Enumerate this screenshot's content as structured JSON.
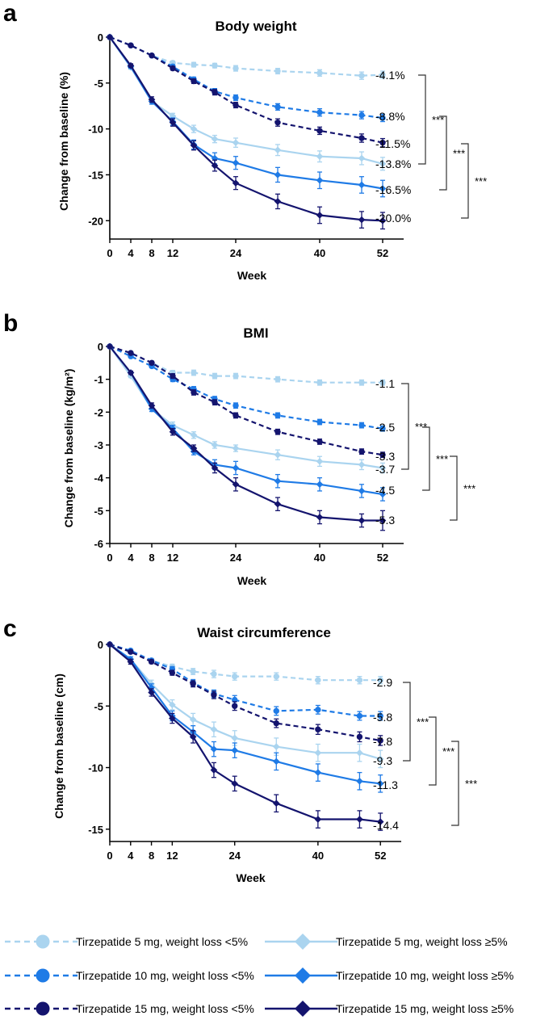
{
  "colors": {
    "t5": "#aad4ef",
    "t10": "#1f7be6",
    "t15": "#14146e"
  },
  "legend": {
    "items": [
      {
        "label": "Tirzepatide 5 mg, weight loss <5%",
        "color": "t5",
        "dashed": true,
        "marker": "circle"
      },
      {
        "label": "Tirzepatide 10 mg, weight loss <5%",
        "color": "t10",
        "dashed": true,
        "marker": "circle"
      },
      {
        "label": "Tirzepatide 15 mg, weight loss <5%",
        "color": "t15",
        "dashed": true,
        "marker": "circle"
      },
      {
        "label": "Tirzepatide 5 mg, weight loss ≥5%",
        "color": "t5",
        "dashed": false,
        "marker": "diamond"
      },
      {
        "label": "Tirzepatide 10 mg, weight loss ≥5%",
        "color": "t10",
        "dashed": false,
        "marker": "diamond"
      },
      {
        "label": "Tirzepatide 15 mg, weight loss ≥5%",
        "color": "t15",
        "dashed": false,
        "marker": "diamond"
      }
    ]
  },
  "chart_data": [
    {
      "type": "line",
      "panel": "a",
      "title": "Body weight",
      "xlabel": "Week",
      "ylabel": "Change from baseline (%)",
      "xticks": [
        0,
        4,
        8,
        12,
        24,
        40,
        52
      ],
      "yticks": [
        0,
        -5,
        -10,
        -15,
        -20
      ],
      "ytick_labels": [
        "0",
        "-5",
        "-10",
        "-15",
        "-20"
      ],
      "xlim": [
        0,
        56
      ],
      "ylim": [
        -22,
        0
      ],
      "series": [
        {
          "name": "Tirzepatide 5 mg, weight loss <5%",
          "color": "t5",
          "dashed": true,
          "marker": "circle",
          "x": [
            0,
            4,
            8,
            12,
            16,
            20,
            24,
            32,
            40,
            48,
            52
          ],
          "y": [
            0,
            -0.9,
            -2.0,
            -2.8,
            -3.0,
            -3.1,
            -3.4,
            -3.7,
            -3.9,
            -4.2,
            -4.1
          ],
          "err": [
            0,
            0.1,
            0.15,
            0.2,
            0.25,
            0.25,
            0.3,
            0.3,
            0.35,
            0.4,
            0.4
          ],
          "end_label": "-4.1%"
        },
        {
          "name": "Tirzepatide 10 mg, weight loss <5%",
          "color": "t10",
          "dashed": true,
          "marker": "circle",
          "x": [
            0,
            4,
            8,
            12,
            16,
            20,
            24,
            32,
            40,
            48,
            52
          ],
          "y": [
            0,
            -0.9,
            -2.0,
            -3.2,
            -4.6,
            -5.9,
            -6.6,
            -7.6,
            -8.2,
            -8.5,
            -8.8
          ],
          "err": [
            0,
            0.1,
            0.15,
            0.2,
            0.25,
            0.3,
            0.3,
            0.35,
            0.4,
            0.4,
            0.4
          ],
          "end_label": "-8.8%"
        },
        {
          "name": "Tirzepatide 15 mg, weight loss <5%",
          "color": "t15",
          "dashed": true,
          "marker": "circle",
          "x": [
            0,
            4,
            8,
            12,
            16,
            20,
            24,
            32,
            40,
            48,
            52
          ],
          "y": [
            0,
            -0.9,
            -2.0,
            -3.4,
            -4.8,
            -6.0,
            -7.4,
            -9.3,
            -10.2,
            -11.0,
            -11.5
          ],
          "err": [
            0,
            0.1,
            0.15,
            0.2,
            0.25,
            0.3,
            0.3,
            0.4,
            0.4,
            0.45,
            0.45
          ],
          "end_label": "-11.5%"
        },
        {
          "name": "Tirzepatide 5 mg, weight loss ≥5%",
          "color": "t5",
          "dashed": false,
          "marker": "diamond",
          "x": [
            0,
            4,
            8,
            12,
            16,
            20,
            24,
            32,
            40,
            48,
            52
          ],
          "y": [
            0,
            -3.3,
            -7.0,
            -8.6,
            -10.0,
            -11.1,
            -11.5,
            -12.3,
            -13.0,
            -13.2,
            -13.8
          ],
          "err": [
            0,
            0.2,
            0.3,
            0.3,
            0.4,
            0.4,
            0.5,
            0.6,
            0.6,
            0.7,
            0.7
          ],
          "end_label": "-13.8%"
        },
        {
          "name": "Tirzepatide 10 mg, weight loss ≥5%",
          "color": "t10",
          "dashed": false,
          "marker": "diamond",
          "x": [
            0,
            4,
            8,
            12,
            16,
            20,
            24,
            32,
            40,
            48,
            52
          ],
          "y": [
            0,
            -3.2,
            -7.0,
            -9.2,
            -11.7,
            -13.2,
            -13.7,
            -15.0,
            -15.6,
            -16.1,
            -16.5
          ],
          "err": [
            0,
            0.2,
            0.3,
            0.4,
            0.5,
            0.6,
            0.7,
            0.8,
            0.9,
            0.9,
            0.9
          ],
          "end_label": "-16.5%"
        },
        {
          "name": "Tirzepatide 15 mg, weight loss ≥5%",
          "color": "t15",
          "dashed": false,
          "marker": "diamond",
          "x": [
            0,
            4,
            8,
            12,
            16,
            20,
            24,
            32,
            40,
            48,
            52
          ],
          "y": [
            0,
            -3.1,
            -6.8,
            -9.3,
            -11.8,
            -14.0,
            -15.9,
            -17.9,
            -19.4,
            -19.9,
            -20.0
          ],
          "err": [
            0,
            0.2,
            0.3,
            0.4,
            0.5,
            0.6,
            0.7,
            0.8,
            0.9,
            0.9,
            0.9
          ],
          "end_label": "-20.0%"
        }
      ],
      "comparisons": [
        {
          "from": 0,
          "to": 3,
          "label": "***",
          "level": 3
        },
        {
          "from": 1,
          "to": 4,
          "label": "***",
          "level": 2
        },
        {
          "from": 2,
          "to": 5,
          "label": "***",
          "level": 1
        }
      ]
    },
    {
      "type": "line",
      "panel": "b",
      "title": "BMI",
      "xlabel": "Week",
      "ylabel": "Change from baseline (kg/m²)",
      "xticks": [
        0,
        4,
        8,
        12,
        24,
        40,
        52
      ],
      "yticks": [
        0,
        -1,
        -2,
        -3,
        -4,
        -5,
        -6
      ],
      "ytick_labels": [
        "0",
        "-1",
        "-2",
        "-3",
        "-4",
        "-5",
        "-6"
      ],
      "xlim": [
        0,
        56
      ],
      "ylim": [
        -6,
        0
      ],
      "series": [
        {
          "name": "Tirzepatide 5 mg, weight loss <5%",
          "color": "t5",
          "dashed": true,
          "marker": "circle",
          "x": [
            0,
            4,
            8,
            12,
            16,
            20,
            24,
            32,
            40,
            48,
            52
          ],
          "y": [
            0,
            -0.2,
            -0.5,
            -0.8,
            -0.8,
            -0.9,
            -0.9,
            -1.0,
            -1.1,
            -1.1,
            -1.1
          ],
          "err": [
            0,
            0.03,
            0.05,
            0.07,
            0.08,
            0.08,
            0.08,
            0.08,
            0.08,
            0.08,
            0.08
          ],
          "end_label": "-1.1"
        },
        {
          "name": "Tirzepatide 10 mg, weight loss <5%",
          "color": "t10",
          "dashed": true,
          "marker": "circle",
          "x": [
            0,
            4,
            8,
            12,
            16,
            20,
            24,
            32,
            40,
            48,
            52
          ],
          "y": [
            0,
            -0.3,
            -0.6,
            -1.0,
            -1.3,
            -1.6,
            -1.8,
            -2.1,
            -2.3,
            -2.4,
            -2.5
          ],
          "err": [
            0,
            0.03,
            0.05,
            0.07,
            0.08,
            0.08,
            0.08,
            0.08,
            0.08,
            0.08,
            0.08
          ],
          "end_label": "-2.5"
        },
        {
          "name": "Tirzepatide 15 mg, weight loss <5%",
          "color": "t15",
          "dashed": true,
          "marker": "circle",
          "x": [
            0,
            4,
            8,
            12,
            16,
            20,
            24,
            32,
            40,
            48,
            52
          ],
          "y": [
            0,
            -0.2,
            -0.5,
            -0.9,
            -1.4,
            -1.7,
            -2.1,
            -2.6,
            -2.9,
            -3.2,
            -3.3
          ],
          "err": [
            0,
            0.03,
            0.05,
            0.07,
            0.08,
            0.08,
            0.08,
            0.08,
            0.08,
            0.08,
            0.08
          ],
          "end_label": "-3.3"
        },
        {
          "name": "Tirzepatide 5 mg, weight loss ≥5%",
          "color": "t5",
          "dashed": false,
          "marker": "diamond",
          "x": [
            0,
            4,
            8,
            12,
            16,
            20,
            24,
            32,
            40,
            48,
            52
          ],
          "y": [
            0,
            -0.9,
            -1.9,
            -2.4,
            -2.7,
            -3.0,
            -3.1,
            -3.3,
            -3.5,
            -3.6,
            -3.7
          ],
          "err": [
            0,
            0.05,
            0.08,
            0.1,
            0.1,
            0.1,
            0.1,
            0.15,
            0.15,
            0.15,
            0.15
          ],
          "end_label": "-3.7"
        },
        {
          "name": "Tirzepatide 10 mg, weight loss ≥5%",
          "color": "t10",
          "dashed": false,
          "marker": "diamond",
          "x": [
            0,
            4,
            8,
            12,
            16,
            20,
            24,
            32,
            40,
            48,
            52
          ],
          "y": [
            0,
            -0.8,
            -1.9,
            -2.5,
            -3.2,
            -3.6,
            -3.7,
            -4.1,
            -4.2,
            -4.4,
            -4.5
          ],
          "err": [
            0,
            0.05,
            0.08,
            0.1,
            0.1,
            0.15,
            0.2,
            0.2,
            0.2,
            0.2,
            0.2
          ],
          "end_label": "-4.5"
        },
        {
          "name": "Tirzepatide 15 mg, weight loss ≥5%",
          "color": "t15",
          "dashed": false,
          "marker": "diamond",
          "x": [
            0,
            4,
            8,
            12,
            16,
            20,
            24,
            32,
            40,
            48,
            52
          ],
          "y": [
            0,
            -0.8,
            -1.8,
            -2.6,
            -3.1,
            -3.7,
            -4.2,
            -4.8,
            -5.2,
            -5.3,
            -5.3
          ],
          "err": [
            0,
            0.05,
            0.08,
            0.1,
            0.1,
            0.15,
            0.2,
            0.2,
            0.2,
            0.2,
            0.3
          ],
          "end_label": "-5.3"
        }
      ],
      "comparisons": [
        {
          "from": 0,
          "to": 3,
          "label": "***",
          "level": 3
        },
        {
          "from": 1,
          "to": 4,
          "label": "***",
          "level": 2
        },
        {
          "from": 2,
          "to": 5,
          "label": "***",
          "level": 1
        }
      ]
    },
    {
      "type": "line",
      "panel": "c",
      "title": "Waist circumference",
      "xlabel": "Week",
      "ylabel": "Change from baseline (cm)",
      "xticks": [
        0,
        4,
        8,
        12,
        24,
        40,
        52
      ],
      "yticks": [
        0,
        -5,
        -10,
        -15
      ],
      "ytick_labels": [
        "0",
        "-5",
        "-10",
        "-15"
      ],
      "xlim": [
        0,
        56
      ],
      "ylim": [
        -16,
        0
      ],
      "series": [
        {
          "name": "Tirzepatide 5 mg, weight loss <5%",
          "color": "t5",
          "dashed": true,
          "marker": "circle",
          "x": [
            0,
            4,
            8,
            12,
            16,
            20,
            24,
            32,
            40,
            48,
            52
          ],
          "y": [
            0,
            -0.6,
            -1.3,
            -1.8,
            -2.2,
            -2.4,
            -2.6,
            -2.6,
            -2.9,
            -2.9,
            -2.9
          ],
          "err": [
            0,
            0.1,
            0.15,
            0.2,
            0.25,
            0.3,
            0.3,
            0.3,
            0.3,
            0.3,
            0.3
          ],
          "end_label": "-2.9"
        },
        {
          "name": "Tirzepatide 10 mg, weight loss <5%",
          "color": "t10",
          "dashed": true,
          "marker": "circle",
          "x": [
            0,
            4,
            8,
            12,
            16,
            20,
            24,
            32,
            40,
            48,
            52
          ],
          "y": [
            0,
            -0.5,
            -1.3,
            -2.0,
            -3.1,
            -4.0,
            -4.5,
            -5.4,
            -5.3,
            -5.8,
            -5.8
          ],
          "err": [
            0,
            0.1,
            0.15,
            0.2,
            0.25,
            0.3,
            0.35,
            0.35,
            0.35,
            0.35,
            0.35
          ],
          "end_label": "-5.8"
        },
        {
          "name": "Tirzepatide 15 mg, weight loss <5%",
          "color": "t15",
          "dashed": true,
          "marker": "circle",
          "x": [
            0,
            4,
            8,
            12,
            16,
            20,
            24,
            32,
            40,
            48,
            52
          ],
          "y": [
            0,
            -0.6,
            -1.4,
            -2.3,
            -3.2,
            -4.1,
            -5.0,
            -6.4,
            -6.9,
            -7.5,
            -7.8
          ],
          "err": [
            0,
            0.1,
            0.15,
            0.2,
            0.25,
            0.3,
            0.35,
            0.35,
            0.4,
            0.4,
            0.4
          ],
          "end_label": "-7.8"
        },
        {
          "name": "Tirzepatide 5 mg, weight loss ≥5%",
          "color": "t5",
          "dashed": false,
          "marker": "diamond",
          "x": [
            0,
            4,
            8,
            12,
            16,
            20,
            24,
            32,
            40,
            48,
            52
          ],
          "y": [
            0,
            -1.2,
            -3.2,
            -4.9,
            -6.1,
            -6.9,
            -7.6,
            -8.3,
            -8.8,
            -8.8,
            -9.3
          ],
          "err": [
            0,
            0.2,
            0.3,
            0.4,
            0.5,
            0.6,
            0.6,
            0.7,
            0.7,
            0.7,
            0.7
          ],
          "end_label": "-9.3"
        },
        {
          "name": "Tirzepatide 10 mg, weight loss ≥5%",
          "color": "t10",
          "dashed": false,
          "marker": "diamond",
          "x": [
            0,
            4,
            8,
            12,
            16,
            20,
            24,
            32,
            40,
            48,
            52
          ],
          "y": [
            0,
            -1.2,
            -3.5,
            -5.8,
            -7.1,
            -8.5,
            -8.6,
            -9.5,
            -10.4,
            -11.1,
            -11.3
          ],
          "err": [
            0,
            0.2,
            0.3,
            0.4,
            0.5,
            0.6,
            0.6,
            0.7,
            0.7,
            0.7,
            0.7
          ],
          "end_label": "-11.3"
        },
        {
          "name": "Tirzepatide 15 mg, weight loss ≥5%",
          "color": "t15",
          "dashed": false,
          "marker": "diamond",
          "x": [
            0,
            4,
            8,
            12,
            16,
            20,
            24,
            32,
            40,
            48,
            52
          ],
          "y": [
            0,
            -1.4,
            -3.9,
            -6.0,
            -7.5,
            -10.2,
            -11.3,
            -12.9,
            -14.2,
            -14.2,
            -14.4
          ],
          "err": [
            0,
            0.2,
            0.3,
            0.4,
            0.5,
            0.6,
            0.6,
            0.7,
            0.7,
            0.7,
            0.7
          ],
          "end_label": "-14.4"
        }
      ],
      "comparisons": [
        {
          "from": 0,
          "to": 3,
          "label": "***",
          "level": 3
        },
        {
          "from": 1,
          "to": 4,
          "label": "***",
          "level": 2
        },
        {
          "from": 2,
          "to": 5,
          "label": "***",
          "level": 1
        }
      ]
    }
  ]
}
